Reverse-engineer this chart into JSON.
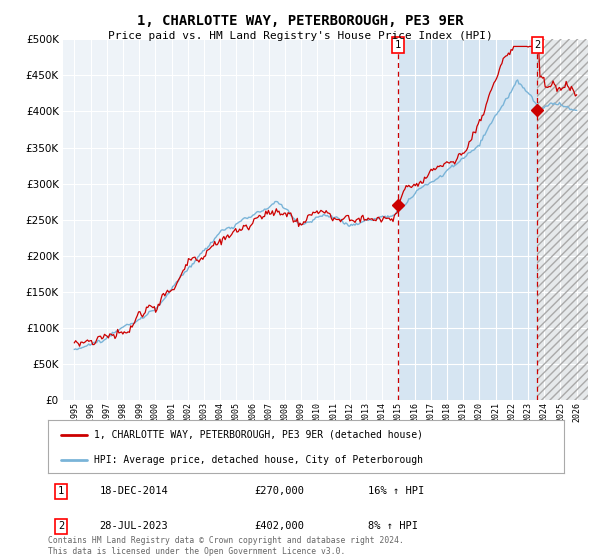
{
  "title": "1, CHARLOTTE WAY, PETERBOROUGH, PE3 9ER",
  "subtitle": "Price paid vs. HM Land Registry's House Price Index (HPI)",
  "legend_line1": "1, CHARLOTTE WAY, PETERBOROUGH, PE3 9ER (detached house)",
  "legend_line2": "HPI: Average price, detached house, City of Peterborough",
  "annotation1_date": "18-DEC-2014",
  "annotation1_price": "£270,000",
  "annotation1_hpi": "16% ↑ HPI",
  "annotation2_date": "28-JUL-2023",
  "annotation2_price": "£402,000",
  "annotation2_hpi": "8% ↑ HPI",
  "footer": "Contains HM Land Registry data © Crown copyright and database right 2024.\nThis data is licensed under the Open Government Licence v3.0.",
  "hpi_color": "#7ab4d8",
  "price_color": "#cc0000",
  "background_color": "#ffffff",
  "plot_bg_color": "#eef3f8",
  "grid_color": "#ffffff",
  "ylim": [
    0,
    500000
  ],
  "yticks": [
    0,
    50000,
    100000,
    150000,
    200000,
    250000,
    300000,
    350000,
    400000,
    450000,
    500000
  ],
  "transaction1_x": 2014.97,
  "transaction1_y": 270000,
  "transaction2_x": 2023.58,
  "transaction2_y": 402000,
  "xlim_left": 1994.3,
  "xlim_right": 2026.7
}
